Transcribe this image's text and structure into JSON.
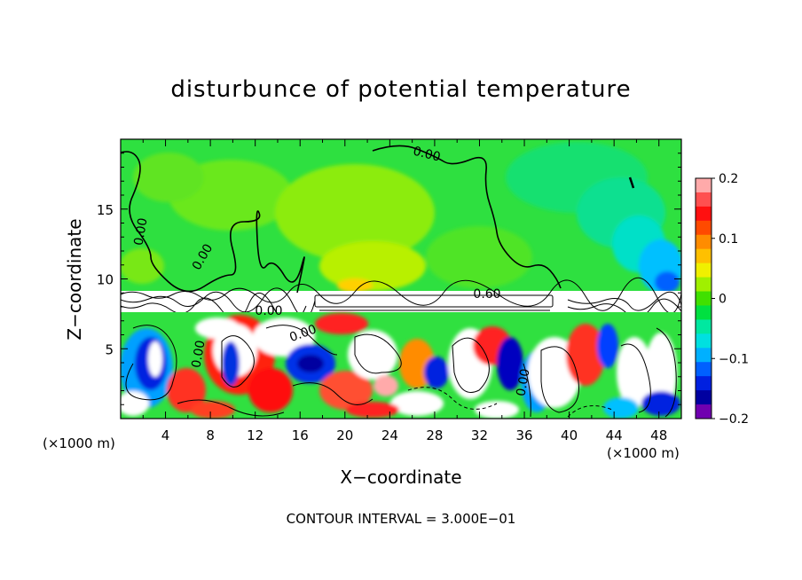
{
  "chart_data": {
    "type": "heatmap",
    "title": "disturbunce of potential temperature",
    "xlabel": "X−coordinate",
    "ylabel": "Z−coordinate",
    "x_unit_label": "(×1000 m)",
    "z_unit_label": "(×1000 m)",
    "xlim": [
      0,
      50
    ],
    "ylim": [
      0,
      20
    ],
    "x_ticks": [
      4,
      8,
      12,
      16,
      20,
      24,
      28,
      32,
      36,
      40,
      44,
      48
    ],
    "y_ticks": [
      5,
      10,
      15
    ],
    "colorbar": {
      "range": [
        -0.2,
        0.2
      ],
      "ticks": [
        "0.2",
        "0.1",
        "0",
        "−0.1",
        "−0.2"
      ],
      "tick_values": [
        0.2,
        0.1,
        0,
        -0.1,
        -0.2
      ],
      "colors": [
        "#ffaaaa",
        "#ff5050",
        "#ff1010",
        "#ff4a00",
        "#ff8c00",
        "#ffc000",
        "#f0f000",
        "#a0f000",
        "#40e000",
        "#00e040",
        "#00e8a0",
        "#00e0e0",
        "#00b0ff",
        "#0060ff",
        "#0020e0",
        "#0000a0",
        "#7000b0"
      ]
    },
    "contour_labels": [
      "0.00",
      "0.00",
      "0.00",
      "0.00",
      "0.60",
      "0.00",
      "0.00",
      "0.00"
    ],
    "annotation": "CONTOUR INTERVAL = 3.000E−01"
  }
}
